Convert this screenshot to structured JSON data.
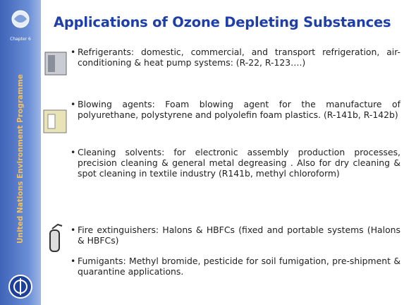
{
  "sidebar": {
    "chapter": "Chapter 6",
    "organization": "United Nations Environment Programme"
  },
  "title": "Applications of Ozone Depleting Substances",
  "bullets": [
    "Refrigerants: domestic, commercial, and transport refrigeration, air-conditioning & heat pump systems: (R-22, R-123….)",
    "Blowing agents: Foam blowing agent for the manufacture of polyurethane, polystyrene and polyolefin foam plastics. (R-141b, R-142b)",
    "Cleaning solvents: for electronic assembly production processes, precision cleaning & general metal degreasing . Also for dry cleaning & spot cleaning in textile industry (R141b, methyl chloroform)",
    "Fire extinguishers: Halons & HBFCs (fixed and portable systems (Halons & HBFCs)",
    "Fumigants: Methyl bromide, pesticide for soil fumigation, pre-shipment & quarantine applications."
  ]
}
